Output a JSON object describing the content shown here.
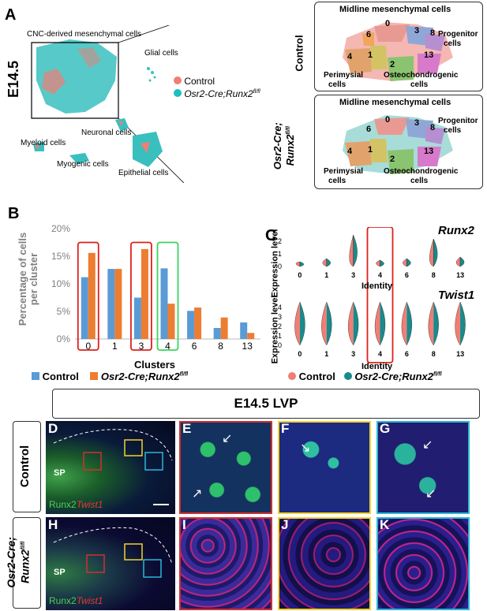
{
  "panels": {
    "A": "A",
    "B": "B",
    "C": "C",
    "D": "D",
    "E": "E",
    "F": "F",
    "G": "G",
    "H": "H",
    "I": "I",
    "J": "J",
    "K": "K"
  },
  "panelA": {
    "stage": "E14.5",
    "cnc_label": "CNC-derived mesenchymal cells",
    "glial": "Glial cells",
    "neuronal": "Neuronal cells",
    "myeloid": "Myeloid cells",
    "myogenic": "Myogenic cells",
    "epithelial": "Epithelial cells",
    "legend_control": "Control",
    "legend_mutant": "Osr2-Cre;Runx2",
    "legend_mutant_sup": "fl/fl",
    "control_color": "#F07E74",
    "mutant_color": "#1BBFBF",
    "row_control": "Control",
    "row_mutant_1": "Osr2-Cre;",
    "row_mutant_2": "Runx2",
    "row_mutant_sup": "fl/fl",
    "inset": {
      "midline": "Midline mesenchymal cells",
      "progenitor_1": "Progenitor",
      "progenitor_2": "cells",
      "perimysial_1": "Perimysial",
      "perimysial_2": "cells",
      "osteo_1": "Osteochondrogenic",
      "osteo_2": "cells",
      "clusters": [
        "0",
        "3",
        "6",
        "8",
        "4",
        "1",
        "2",
        "13"
      ]
    }
  },
  "panelB": {
    "ylabel_1": "Percentage of cells",
    "ylabel_2": "per cluster",
    "xlabel": "Clusters",
    "legend_control": "Control",
    "legend_mutant": "Osr2-Cre;Runx2",
    "legend_mutant_sup": "fl/fl"
  },
  "chart_data": {
    "type": "bar",
    "categories": [
      "0",
      "1",
      "3",
      "4",
      "6",
      "8",
      "13"
    ],
    "series": [
      {
        "name": "Control",
        "values": [
          11.2,
          12.7,
          7.5,
          12.8,
          5.1,
          2.0,
          3.0
        ],
        "color": "#5B9BD5"
      },
      {
        "name": "Osr2-Cre;Runx2fl/fl",
        "values": [
          15.6,
          12.7,
          16.3,
          6.4,
          5.7,
          3.9,
          1.1
        ],
        "color": "#ED7D31"
      }
    ],
    "ylim": [
      0,
      20
    ],
    "yticks": [
      "0%",
      "5%",
      "10%",
      "15%",
      "20%"
    ],
    "xlabel": "Clusters",
    "ylabel": "Percentage of cells per cluster",
    "highlight_red": [
      "0",
      "3"
    ],
    "highlight_green": [
      "4"
    ]
  },
  "panelC": {
    "gene1": "Runx2",
    "gene2": "Twist1",
    "ylabel": "Expression level",
    "xlabel": "Identity",
    "clusters": [
      "0",
      "1",
      "3",
      "4",
      "6",
      "8",
      "13"
    ],
    "yticks_runx2": [
      "0",
      "1",
      "2"
    ],
    "yticks_twist1": [
      "0",
      "1",
      "2",
      "3",
      "4"
    ],
    "legend_control": "Control",
    "legend_mutant": "Osr2-Cre;Runx2",
    "legend_mutant_sup": "fl/fl"
  },
  "panelLower": {
    "title": "E14.5 LVP",
    "row_control": "Control",
    "row_mutant_1": "Osr2-Cre;",
    "row_mutant_2": "Runx2",
    "row_mutant_sup": "fl/fl",
    "sp": "SP",
    "stain_runx2": "Runx2",
    "stain_twist1": "Twist1"
  }
}
